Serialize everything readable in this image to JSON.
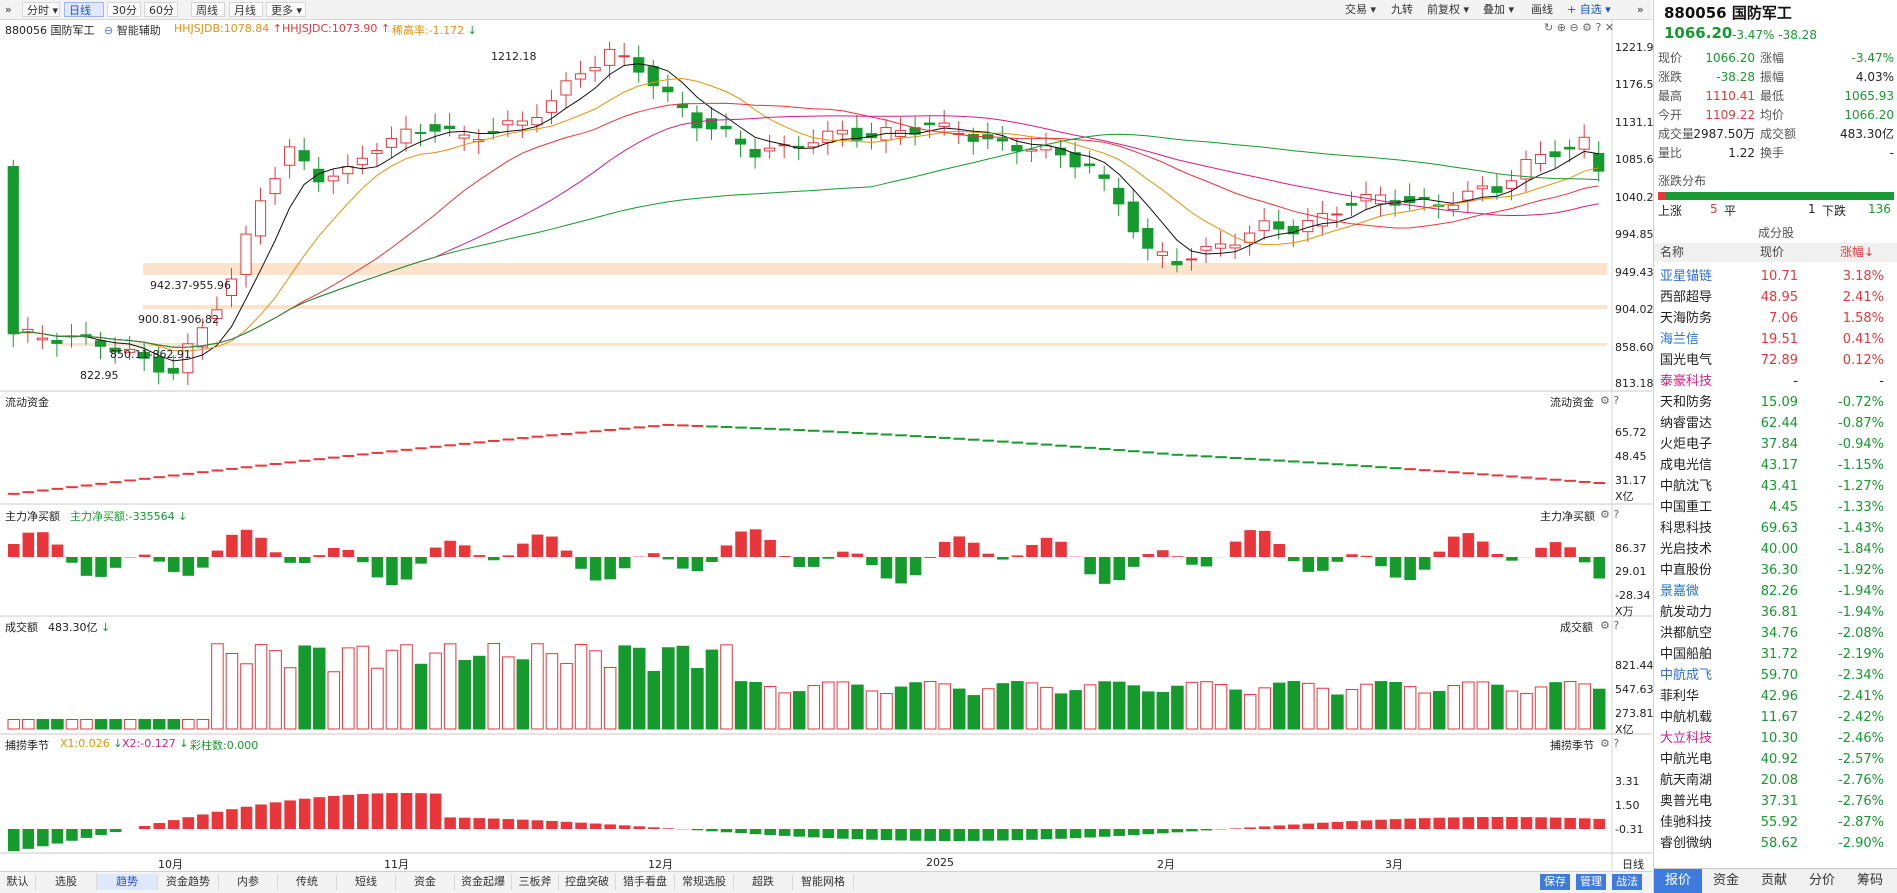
{
  "toolbar": {
    "collapse_icon": "double-chevron-right-icon",
    "periods": [
      "分时",
      "日线",
      "30分",
      "60分",
      "周线",
      "月线",
      "更多"
    ],
    "active_period": "日线",
    "right_items": [
      "交易",
      "九转",
      "前复权",
      "叠加",
      "画线",
      "+ 自选"
    ]
  },
  "legend": {
    "title": "880056 国防军工",
    "smart": "智能辅助",
    "hhjsjdb": "HHJSJDB:1078.84",
    "hhjsjdc": "HHJSJDC:1073.90",
    "slope": "稀高率:-1.172"
  },
  "price_axis": [
    "1221.94",
    "1176.52",
    "1131.10",
    "1085.69",
    "1040.27",
    "994.85",
    "949.43",
    "904.02",
    "858.60",
    "813.18"
  ],
  "annotations": {
    "high": "1212.18",
    "low": "822.95",
    "zone1": "942.37-955.96",
    "zone2": "900.81-906.82",
    "zone3": "850.11-862.91"
  },
  "panels": {
    "flow": {
      "title": "流动资金",
      "right_title": "流动资金",
      "axis": [
        "65.72",
        "48.45",
        "31.17"
      ],
      "unit": "X亿"
    },
    "net": {
      "title": "主力净买额",
      "value": "主力净买额:-335564",
      "right_title": "主力净买额",
      "axis": [
        "86.37",
        "29.01",
        "-28.34"
      ],
      "unit": "X万"
    },
    "volume": {
      "title": "成交额",
      "value": "483.30亿",
      "right_title": "成交额",
      "axis": [
        "821.44",
        "547.63",
        "273.81"
      ],
      "unit": "X亿"
    },
    "season": {
      "title": "捕捞季节",
      "x1": "X1:0.026",
      "x2": "X2:-0.127",
      "bars": "彩柱数:0.000",
      "right_title": "捕捞季节",
      "axis": [
        "3.31",
        "1.50",
        "-0.31"
      ]
    }
  },
  "xaxis": {
    "labels": [
      "10月",
      "11月",
      "12月",
      "2025",
      "2月",
      "3月"
    ],
    "right": "日线"
  },
  "bottom_tabs": [
    "默认",
    "选股",
    "趋势",
    "资金趋势",
    "内参",
    "传统",
    "短线",
    "资金",
    "资金起爆",
    "三板斧",
    "控盘突破",
    "猎手看盘",
    "常规选股",
    "超跌",
    "智能网格"
  ],
  "active_bottom_tab": "趋势",
  "bottom_right": [
    "保存",
    "管理",
    "战法"
  ],
  "sidebar": {
    "code_name": "880056 国防军工",
    "price": "1066.20",
    "change": "-3.47%  -38.28",
    "quotes": [
      {
        "l1": "现价",
        "v1": "1066.20",
        "c1": "green",
        "l2": "涨幅",
        "v2": "-3.47%",
        "c2": "green"
      },
      {
        "l1": "涨跌",
        "v1": "-38.28",
        "c1": "green",
        "l2": "振幅",
        "v2": "4.03%",
        "c2": "black"
      },
      {
        "l1": "最高",
        "v1": "1110.41",
        "c1": "red",
        "l2": "最低",
        "v2": "1065.93",
        "c2": "green"
      },
      {
        "l1": "今开",
        "v1": "1109.22",
        "c1": "red",
        "l2": "均价",
        "v2": "1066.20",
        "c2": "green"
      },
      {
        "l1": "成交量",
        "v1": "2987.50万",
        "c1": "black",
        "l2": "成交额",
        "v2": "483.30亿",
        "c2": "black"
      },
      {
        "l1": "量比",
        "v1": "1.22",
        "c1": "black",
        "l2": "换手",
        "v2": "-",
        "c2": "black"
      }
    ],
    "dist_title": "涨跌分布",
    "up_label": "上涨",
    "up_count": "5",
    "flat_label": "平",
    "flat_count": "1",
    "down_label": "下跌",
    "down_count": "136",
    "up_fraction": 0.035,
    "cfg_title": "成分股",
    "cfg_headers": [
      "名称",
      "现价",
      "涨幅↓"
    ],
    "stocks": [
      {
        "name": "亚星锚链",
        "price": "10.71",
        "pct": "3.18%",
        "nc": "blue",
        "pc": "red"
      },
      {
        "name": "西部超导",
        "price": "48.95",
        "pct": "2.41%",
        "nc": "black",
        "pc": "red"
      },
      {
        "name": "天海防务",
        "price": "7.06",
        "pct": "1.58%",
        "nc": "black",
        "pc": "red"
      },
      {
        "name": "海兰信",
        "price": "19.51",
        "pct": "0.41%",
        "nc": "blue",
        "pc": "red"
      },
      {
        "name": "国光电气",
        "price": "72.89",
        "pct": "0.12%",
        "nc": "black",
        "pc": "red"
      },
      {
        "name": "泰豪科技",
        "price": "-",
        "pct": "-",
        "nc": "magenta",
        "pc": "black"
      },
      {
        "name": "天和防务",
        "price": "15.09",
        "pct": "-0.72%",
        "nc": "black",
        "pc": "green"
      },
      {
        "name": "纳睿雷达",
        "price": "62.44",
        "pct": "-0.87%",
        "nc": "black",
        "pc": "green"
      },
      {
        "name": "火炬电子",
        "price": "37.84",
        "pct": "-0.94%",
        "nc": "black",
        "pc": "green"
      },
      {
        "name": "成电光信",
        "price": "43.17",
        "pct": "-1.15%",
        "nc": "black",
        "pc": "green"
      },
      {
        "name": "中航沈飞",
        "price": "43.41",
        "pct": "-1.27%",
        "nc": "black",
        "pc": "green"
      },
      {
        "name": "中国重工",
        "price": "4.45",
        "pct": "-1.33%",
        "nc": "black",
        "pc": "green"
      },
      {
        "name": "科思科技",
        "price": "69.63",
        "pct": "-1.43%",
        "nc": "black",
        "pc": "green"
      },
      {
        "name": "光启技术",
        "price": "40.00",
        "pct": "-1.84%",
        "nc": "black",
        "pc": "green"
      },
      {
        "name": "中直股份",
        "price": "36.30",
        "pct": "-1.92%",
        "nc": "black",
        "pc": "green"
      },
      {
        "name": "景嘉微",
        "price": "82.26",
        "pct": "-1.94%",
        "nc": "blue",
        "pc": "green"
      },
      {
        "name": "航发动力",
        "price": "36.81",
        "pct": "-1.94%",
        "nc": "black",
        "pc": "green"
      },
      {
        "name": "洪都航空",
        "price": "34.76",
        "pct": "-2.08%",
        "nc": "black",
        "pc": "green"
      },
      {
        "name": "中国船舶",
        "price": "31.72",
        "pct": "-2.19%",
        "nc": "black",
        "pc": "green"
      },
      {
        "name": "中航成飞",
        "price": "59.70",
        "pct": "-2.34%",
        "nc": "blue",
        "pc": "green"
      },
      {
        "name": "菲利华",
        "price": "42.96",
        "pct": "-2.41%",
        "nc": "black",
        "pc": "green"
      },
      {
        "name": "中航机载",
        "price": "11.67",
        "pct": "-2.42%",
        "nc": "black",
        "pc": "green"
      },
      {
        "name": "大立科技",
        "price": "10.30",
        "pct": "-2.46%",
        "nc": "magenta",
        "pc": "green"
      },
      {
        "name": "中航光电",
        "price": "40.92",
        "pct": "-2.57%",
        "nc": "black",
        "pc": "green"
      },
      {
        "name": "航天南湖",
        "price": "20.08",
        "pct": "-2.76%",
        "nc": "black",
        "pc": "green"
      },
      {
        "name": "奥普光电",
        "price": "37.31",
        "pct": "-2.76%",
        "nc": "black",
        "pc": "green"
      },
      {
        "name": "佳驰科技",
        "price": "55.92",
        "pct": "-2.87%",
        "nc": "black",
        "pc": "green"
      },
      {
        "name": "睿创微纳",
        "price": "58.62",
        "pct": "-2.90%",
        "nc": "black",
        "pc": "green"
      }
    ],
    "bottom_tabs": [
      "报价",
      "资金",
      "贡献",
      "分价",
      "筹码"
    ],
    "active_bottom_tab": "报价"
  },
  "colors": {
    "up": "#e8363a",
    "down": "#159a2d",
    "accent": "#3d7be0",
    "zone": "#fde3cc"
  }
}
